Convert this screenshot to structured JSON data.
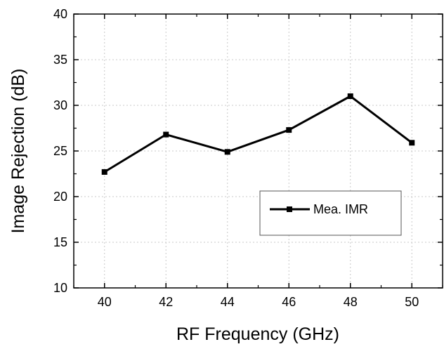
{
  "chart_data": {
    "type": "line",
    "title": "",
    "xlabel": "RF Frequency (GHz)",
    "ylabel": "Image Rejection (dB)",
    "xlim": [
      39,
      51
    ],
    "ylim": [
      10,
      40
    ],
    "x_ticks": [
      40,
      42,
      44,
      46,
      48,
      50
    ],
    "y_ticks": [
      10,
      15,
      20,
      25,
      30,
      35,
      40
    ],
    "grid": true,
    "legend_position": "center-right",
    "series": [
      {
        "name": "Mea. IMR",
        "marker": "square",
        "color": "#000000",
        "x": [
          40,
          42,
          44,
          46,
          48,
          50
        ],
        "y": [
          22.7,
          26.8,
          24.9,
          27.3,
          31.0,
          25.9
        ]
      }
    ]
  }
}
